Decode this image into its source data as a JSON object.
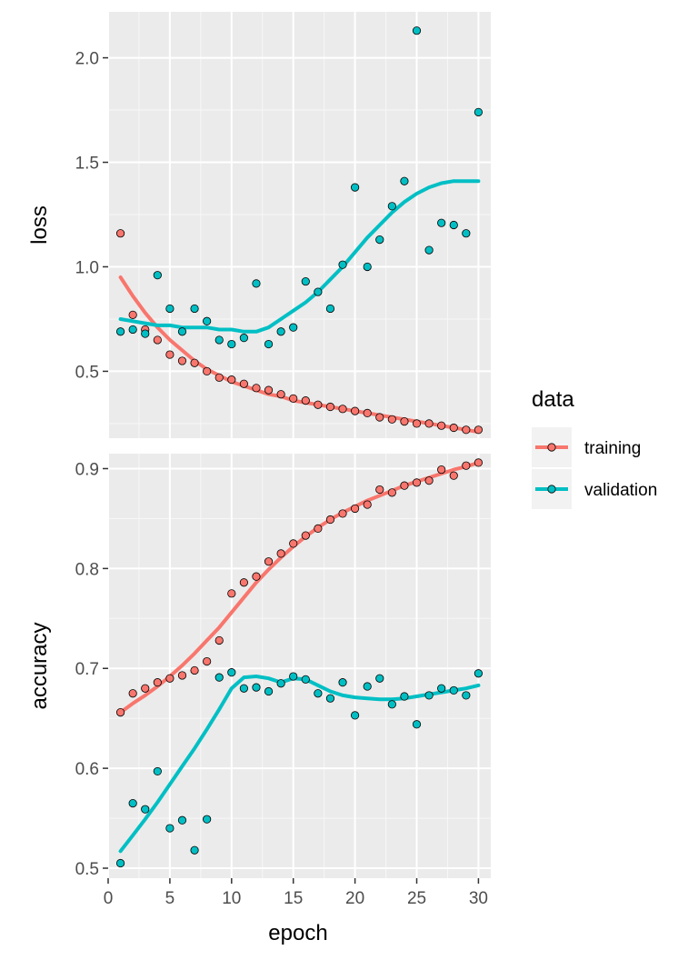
{
  "chart_data": {
    "type": "scatter",
    "x_label": "epoch",
    "legend": {
      "title": "data",
      "position": "right",
      "items": [
        {
          "name": "training",
          "color": "#F8766D"
        },
        {
          "name": "validation",
          "color": "#00BFC4"
        }
      ]
    },
    "x": [
      1,
      2,
      3,
      4,
      5,
      6,
      7,
      8,
      9,
      10,
      11,
      12,
      13,
      14,
      15,
      16,
      17,
      18,
      19,
      20,
      21,
      22,
      23,
      24,
      25,
      26,
      27,
      28,
      29,
      30
    ],
    "x_range": [
      0,
      31
    ],
    "x_ticks": [
      0,
      5,
      10,
      15,
      20,
      25,
      30
    ],
    "grid": true,
    "panels": [
      {
        "y_label": "loss",
        "y_range": [
          0.18,
          2.22
        ],
        "y_ticks": [
          0.5,
          1.0,
          1.5,
          2.0
        ],
        "y_tick_labels": [
          "0.5",
          "1.0",
          "1.5",
          "2.0"
        ],
        "series": [
          {
            "name": "training",
            "color": "#F8766D",
            "points": [
              1.16,
              0.77,
              0.7,
              0.65,
              0.58,
              0.55,
              0.54,
              0.5,
              0.47,
              0.46,
              0.44,
              0.42,
              0.41,
              0.39,
              0.37,
              0.36,
              0.34,
              0.33,
              0.32,
              0.31,
              0.3,
              0.28,
              0.27,
              0.26,
              0.25,
              0.25,
              0.24,
              0.23,
              0.22,
              0.22
            ],
            "smooth": [
              0.95,
              0.86,
              0.78,
              0.71,
              0.65,
              0.6,
              0.55,
              0.51,
              0.48,
              0.45,
              0.43,
              0.41,
              0.39,
              0.38,
              0.36,
              0.35,
              0.34,
              0.33,
              0.32,
              0.31,
              0.3,
              0.29,
              0.28,
              0.27,
              0.26,
              0.25,
              0.24,
              0.23,
              0.22,
              0.21
            ]
          },
          {
            "name": "validation",
            "color": "#00BFC4",
            "points": [
              0.69,
              0.7,
              0.68,
              0.96,
              0.8,
              0.69,
              0.8,
              0.74,
              0.65,
              0.63,
              0.66,
              0.92,
              0.63,
              0.69,
              0.71,
              0.93,
              0.88,
              0.8,
              1.01,
              1.38,
              1.0,
              1.13,
              1.29,
              1.41,
              2.13,
              1.08,
              1.21,
              1.2,
              1.16,
              1.74
            ],
            "smooth": [
              0.75,
              0.74,
              0.73,
              0.72,
              0.72,
              0.71,
              0.71,
              0.71,
              0.7,
              0.7,
              0.69,
              0.69,
              0.71,
              0.75,
              0.79,
              0.83,
              0.88,
              0.94,
              1.0,
              1.07,
              1.14,
              1.2,
              1.26,
              1.31,
              1.35,
              1.38,
              1.4,
              1.41,
              1.41,
              1.41
            ]
          }
        ]
      },
      {
        "y_label": "accuracy",
        "y_range": [
          0.49,
          0.915
        ],
        "y_ticks": [
          0.5,
          0.6,
          0.7,
          0.8,
          0.9
        ],
        "y_tick_labels": [
          "0.5",
          "0.6",
          "0.7",
          "0.8",
          "0.9"
        ],
        "series": [
          {
            "name": "training",
            "color": "#F8766D",
            "points": [
              0.656,
              0.675,
              0.68,
              0.686,
              0.69,
              0.693,
              0.698,
              0.707,
              0.728,
              0.775,
              0.786,
              0.792,
              0.807,
              0.815,
              0.825,
              0.833,
              0.84,
              0.849,
              0.855,
              0.86,
              0.864,
              0.879,
              0.876,
              0.883,
              0.886,
              0.888,
              0.899,
              0.893,
              0.903,
              0.906
            ],
            "smooth": [
              0.656,
              0.665,
              0.673,
              0.682,
              0.692,
              0.703,
              0.715,
              0.728,
              0.741,
              0.756,
              0.771,
              0.786,
              0.799,
              0.811,
              0.822,
              0.832,
              0.841,
              0.849,
              0.856,
              0.862,
              0.868,
              0.873,
              0.878,
              0.883,
              0.887,
              0.891,
              0.895,
              0.899,
              0.902,
              0.906
            ]
          },
          {
            "name": "validation",
            "color": "#00BFC4",
            "points": [
              0.505,
              0.565,
              0.559,
              0.597,
              0.54,
              0.548,
              0.518,
              0.549,
              0.691,
              0.696,
              0.68,
              0.681,
              0.677,
              0.685,
              0.692,
              0.689,
              0.675,
              0.67,
              0.686,
              0.653,
              0.682,
              0.69,
              0.664,
              0.672,
              0.644,
              0.673,
              0.68,
              0.678,
              0.673,
              0.695
            ],
            "smooth": [
              0.517,
              0.533,
              0.549,
              0.566,
              0.584,
              0.602,
              0.62,
              0.639,
              0.659,
              0.68,
              0.691,
              0.692,
              0.69,
              0.686,
              0.69,
              0.689,
              0.683,
              0.677,
              0.673,
              0.671,
              0.67,
              0.669,
              0.669,
              0.67,
              0.672,
              0.674,
              0.676,
              0.678,
              0.68,
              0.683
            ]
          }
        ]
      }
    ]
  }
}
